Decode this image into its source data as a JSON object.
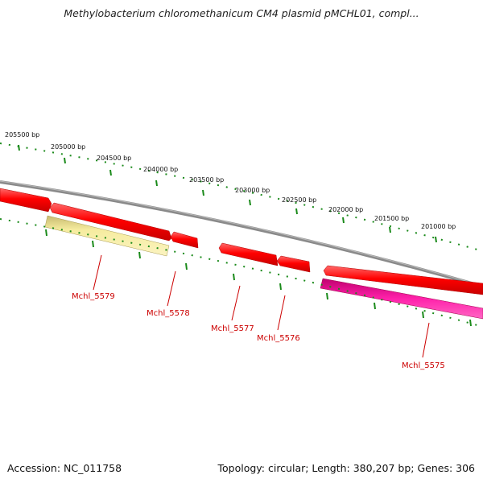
{
  "title": "Methylobacterium chloromethanicum CM4 plasmid pMCHL01, compl...",
  "footer": {
    "accession": "Accession: NC_011758",
    "topology": "Topology: circular; Length: 380,207 bp; Genes: 306"
  },
  "ruler": {
    "labels": [
      "205500 bp",
      "205000 bp",
      "204500 bp",
      "204000 bp",
      "203500 bp",
      "203000 bp",
      "202500 bp",
      "202000 bp",
      "201500 bp",
      "201000 bp"
    ]
  },
  "genes": [
    {
      "label": "Mchl_5579",
      "type": "CDS",
      "color": "#f4e9a0",
      "strand": "minus"
    },
    {
      "label": "Mchl_5578",
      "type": "CDS",
      "color": "#ff0000",
      "strand": "plus"
    },
    {
      "label": "Mchl_5577",
      "type": "CDS",
      "color": "#ff0000",
      "strand": "plus"
    },
    {
      "label": "Mchl_5576",
      "type": "CDS",
      "color": "#ff0000",
      "strand": "plus"
    },
    {
      "label": "Mchl_5575",
      "type": "CDS",
      "color": "#ff0099",
      "strand": "minus"
    }
  ],
  "colors": {
    "backbone": "#8a8a8a",
    "cds": "#ff0000",
    "tick": "#1a8a1a",
    "label": "#cc0000",
    "pale_feature": "#f4e9a0",
    "pink_feature": "#ff0099"
  }
}
